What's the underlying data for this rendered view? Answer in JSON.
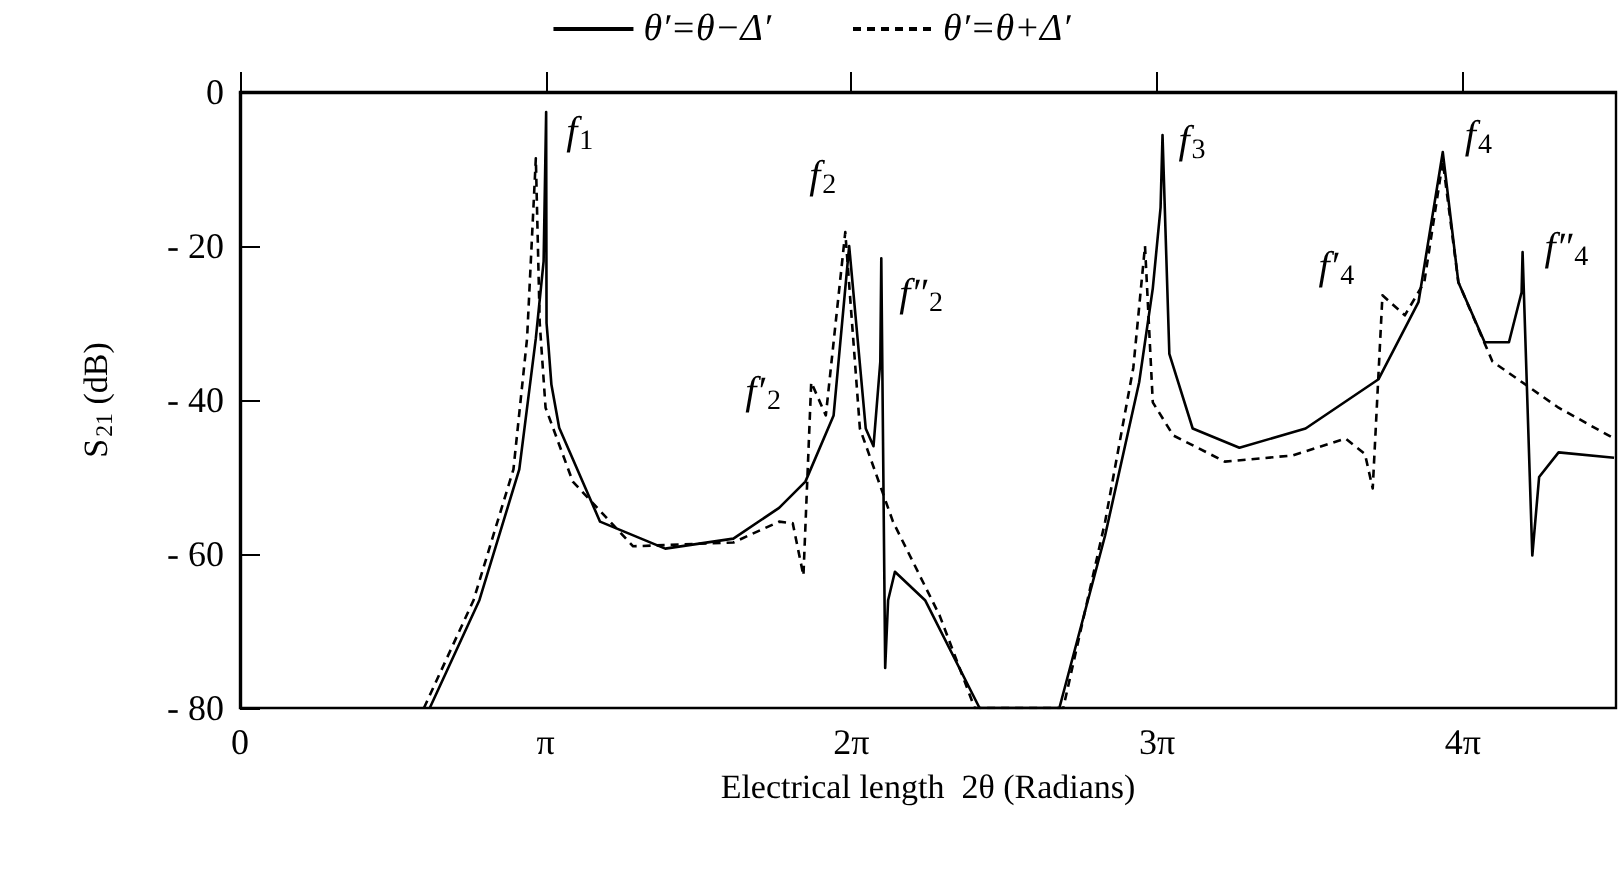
{
  "chart_data": {
    "type": "line",
    "xlabel": "Electrical length  2θ (Radians)",
    "ylabel": "S$_{21}$ (dB)",
    "xlim": [
      0,
      14.14
    ],
    "xticks": [
      0,
      {
        "value": 3.1416,
        "label": "π"
      },
      {
        "value": 6.2832,
        "label": "2π"
      },
      {
        "value": 9.4248,
        "label": "3π"
      },
      {
        "value": 12.5664,
        "label": "4π"
      }
    ],
    "ylim": [
      -80,
      0
    ],
    "yticks": [
      {
        "value": -80,
        "label": "- 80"
      },
      {
        "value": -60,
        "label": "- 60"
      },
      {
        "value": -40,
        "label": "- 40"
      },
      {
        "value": -20,
        "label": "- 20"
      },
      0
    ],
    "legend": "top",
    "marker": "none",
    "series": [
      {
        "name": "θ′=θ−Δ′",
        "color": "#000000",
        "line_style": "solid",
        "x": [
          1.95,
          2.46,
          2.87,
          3.04,
          3.12,
          3.146,
          3.15,
          3.17,
          3.2,
          3.28,
          3.7,
          4.37,
          5.07,
          5.54,
          5.81,
          6.1,
          6.26,
          6.43,
          6.51,
          6.58,
          6.59,
          6.63,
          6.66,
          6.73,
          7.04,
          7.6,
          8.42,
          8.89,
          9.24,
          9.38,
          9.46,
          9.48,
          9.55,
          9.79,
          10.27,
          10.95,
          11.7,
          12.11,
          12.36,
          12.52,
          12.79,
          13.04,
          13.17,
          13.18,
          13.28,
          13.35,
          13.55,
          14.12
        ],
        "values": [
          -80,
          -66,
          -49,
          -32,
          -22,
          -2.6,
          -30,
          -33,
          -38,
          -43.6,
          -55.8,
          -59.3,
          -58,
          -54,
          -50.6,
          -42,
          -20,
          -43.7,
          -46,
          -35,
          -21.6,
          -74.8,
          -66,
          -62.3,
          -66,
          -80,
          -80,
          -57.6,
          -37.7,
          -25.5,
          -15,
          -5.6,
          -34,
          -43.7,
          -46.2,
          -43.7,
          -37.3,
          -27.3,
          -7.8,
          -24.7,
          -32.5,
          -32.5,
          -26,
          -20.8,
          -60.2,
          -50,
          -46.8,
          -47.5
        ]
      },
      {
        "name": "θ′=θ+Δ′",
        "color": "#000000",
        "line_style": "dashed",
        "x": [
          1.89,
          2.4,
          2.81,
          2.95,
          3.04,
          3.08,
          3.14,
          3.42,
          4.04,
          5.07,
          5.54,
          5.68,
          5.79,
          5.87,
          6.02,
          6.22,
          6.37,
          6.71,
          7.19,
          7.55,
          8.46,
          8.89,
          9.18,
          9.3,
          9.38,
          9.59,
          10.12,
          10.82,
          11.36,
          11.56,
          11.64,
          11.74,
          11.97,
          12.17,
          12.36,
          12.52,
          12.87,
          13.55,
          14.12
        ],
        "values": [
          -80,
          -66,
          -49,
          -32,
          -8.6,
          -30,
          -41,
          -50.6,
          -59,
          -58.5,
          -55.8,
          -56,
          -62.8,
          -37.7,
          -42,
          -18.2,
          -43.7,
          -55.8,
          -68,
          -80,
          -80,
          -55.8,
          -35.8,
          -20,
          -40.3,
          -44.6,
          -48,
          -47.2,
          -45,
          -47,
          -51.5,
          -26.4,
          -29,
          -24.7,
          -9,
          -24.7,
          -35,
          -41,
          -45
        ]
      }
    ],
    "annotations": [
      {
        "text": "f$_{1}$",
        "x": 3.146,
        "y": -2.6
      },
      {
        "text": "f$_{2}$",
        "x": 6.26,
        "y": -20
      },
      {
        "text": "f′$_{2}$",
        "x": 5.87,
        "y": -37.7
      },
      {
        "text": "f″$_{2}$",
        "x": 6.59,
        "y": -21.6
      },
      {
        "text": "f$_{3}$",
        "x": 9.48,
        "y": -5.6
      },
      {
        "text": "f′$_{4}$",
        "x": 11.74,
        "y": -26.4
      },
      {
        "text": "f$_{4}$",
        "x": 12.36,
        "y": -7.8
      },
      {
        "text": "f″$_{4}$",
        "x": 13.18,
        "y": -20.8
      }
    ]
  }
}
